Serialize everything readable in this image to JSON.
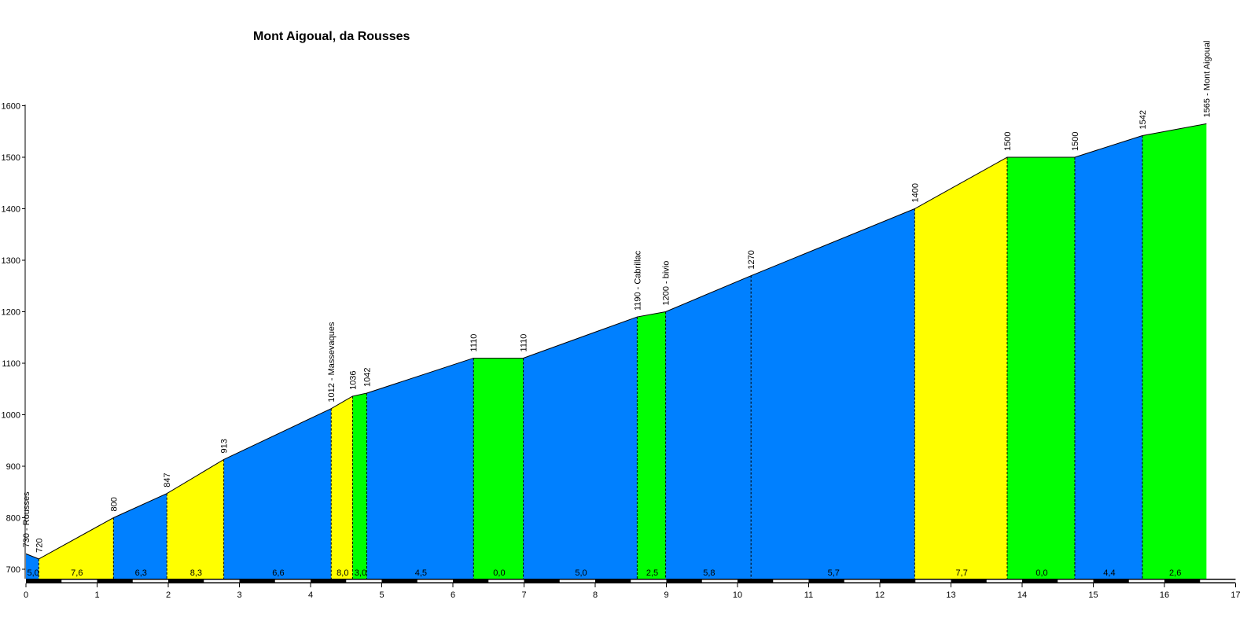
{
  "chart_data": {
    "type": "area",
    "title": "Mont Aigoual, da Rousses",
    "xlabel": "",
    "ylabel": "",
    "xlim": [
      0,
      17
    ],
    "ylim": [
      680,
      1600
    ],
    "x_ticks": [
      "0",
      "1",
      "2",
      "3",
      "4",
      "5",
      "6",
      "7",
      "8",
      "9",
      "10",
      "11",
      "12",
      "13",
      "14",
      "15",
      "16",
      "17"
    ],
    "y_ticks": [
      "700",
      "800",
      "900",
      "1000",
      "1100",
      "1200",
      "1300",
      "1400",
      "1500",
      "1600"
    ],
    "profile": [
      {
        "x": 0.0,
        "y": 730,
        "label": "730 - Rousses"
      },
      {
        "x": 0.18,
        "y": 720,
        "label": "720"
      },
      {
        "x": 1.23,
        "y": 800,
        "label": "800"
      },
      {
        "x": 1.98,
        "y": 847,
        "label": "847"
      },
      {
        "x": 2.78,
        "y": 913,
        "label": "913"
      },
      {
        "x": 4.29,
        "y": 1012,
        "label": "1012 - Massevaques"
      },
      {
        "x": 4.59,
        "y": 1036,
        "label": "1036"
      },
      {
        "x": 4.79,
        "y": 1042,
        "label": "1042"
      },
      {
        "x": 6.29,
        "y": 1110,
        "label": "1110"
      },
      {
        "x": 6.99,
        "y": 1110,
        "label": "1110"
      },
      {
        "x": 8.59,
        "y": 1190,
        "label": "1190 - Cabrillac"
      },
      {
        "x": 8.99,
        "y": 1200,
        "label": "1200 - bivio"
      },
      {
        "x": 10.19,
        "y": 1270,
        "label": "1270"
      },
      {
        "x": 12.49,
        "y": 1400,
        "label": "1400"
      },
      {
        "x": 13.79,
        "y": 1500,
        "label": "1500"
      },
      {
        "x": 14.74,
        "y": 1500,
        "label": "1500"
      },
      {
        "x": 15.69,
        "y": 1542,
        "label": "1542"
      },
      {
        "x": 16.59,
        "y": 1565,
        "label": "1565 - Mont Aigoual"
      }
    ],
    "segments": [
      {
        "gradient": "5,0",
        "color": "#0080ff"
      },
      {
        "gradient": "7,6",
        "color": "#ffff00"
      },
      {
        "gradient": "6,3",
        "color": "#0080ff"
      },
      {
        "gradient": "8,3",
        "color": "#ffff00"
      },
      {
        "gradient": "6,6",
        "color": "#0080ff"
      },
      {
        "gradient": "8,0",
        "color": "#ffff00"
      },
      {
        "gradient": "3,0",
        "color": "#00ff00"
      },
      {
        "gradient": "4,5",
        "color": "#0080ff"
      },
      {
        "gradient": "0,0",
        "color": "#00ff00"
      },
      {
        "gradient": "5,0",
        "color": "#0080ff"
      },
      {
        "gradient": "2,5",
        "color": "#00ff00"
      },
      {
        "gradient": "5,8",
        "color": "#0080ff"
      },
      {
        "gradient": "5,7",
        "color": "#0080ff"
      },
      {
        "gradient": "7,7",
        "color": "#ffff00"
      },
      {
        "gradient": "0,0",
        "color": "#00ff00"
      },
      {
        "gradient": "4,4",
        "color": "#0080ff"
      },
      {
        "gradient": "2,6",
        "color": "#00ff00"
      }
    ],
    "grid": false,
    "legend": "none"
  }
}
